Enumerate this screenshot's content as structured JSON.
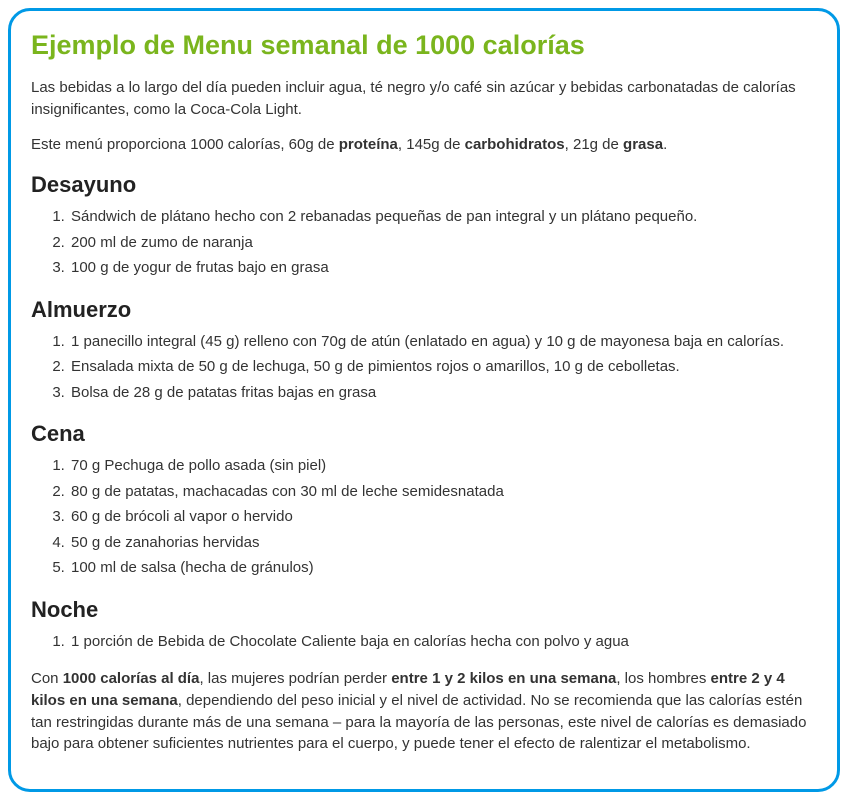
{
  "title": "Ejemplo de Menu semanal de 1000 calorías",
  "intro_p1": "Las bebidas a lo largo del día pueden incluir agua, té negro y/o café sin azúcar y bebidas carbonatadas de calorías insignificantes, como la Coca-Cola Light.",
  "intro_p2_parts": {
    "a": "Este menú proporciona 1000 calorías, 60g de ",
    "b_bold": "proteína",
    "c": ", 145g de ",
    "d_bold": "carbohidratos",
    "e": ", 21g de ",
    "f_bold": "grasa",
    "g": "."
  },
  "sections": [
    {
      "heading": "Desayuno",
      "items": [
        "Sándwich de plátano hecho con 2 rebanadas pequeñas de pan integral y un plátano pequeño.",
        "200 ml de zumo de naranja",
        "100 g de yogur de frutas bajo en grasa"
      ]
    },
    {
      "heading": "Almuerzo",
      "items": [
        "1 panecillo integral (45 g) relleno con 70g de atún (enlatado en agua) y 10 g de mayonesa baja en calorías.",
        "Ensalada mixta de 50 g de lechuga, 50 g de pimientos rojos o amarillos, 10 g de cebolletas.",
        "Bolsa de 28 g de patatas fritas bajas en grasa"
      ]
    },
    {
      "heading": "Cena",
      "items": [
        "70 g Pechuga de pollo asada (sin piel)",
        "80 g de patatas, machacadas con 30 ml de leche semidesnatada",
        "60 g de brócoli al vapor o hervido",
        "50 g de zanahorias hervidas",
        "100 ml de salsa (hecha de gránulos)"
      ]
    },
    {
      "heading": "Noche",
      "items": [
        "1 porción de Bebida de Chocolate Caliente baja en calorías hecha con polvo y agua"
      ]
    }
  ],
  "closing_parts": {
    "a": "Con ",
    "b_bold": "1000 calorías al día",
    "c": ", las mujeres podrían perder ",
    "d_bold": "entre 1 y 2 kilos en una semana",
    "e": ", los hombres ",
    "f_bold": "entre 2 y 4 kilos en una semana",
    "g": ", dependiendo del peso inicial y el nivel de actividad. No se recomienda que las calorías estén tan restringidas durante más de una semana – para la mayoría de las personas, este nivel de calorías es demasiado bajo para obtener suficientes nutrientes para el cuerpo, y puede tener el efecto de ralentizar el metabolismo."
  },
  "colors": {
    "border": "#0099e6",
    "title": "#7ab51d",
    "text": "#333333",
    "background": "#ffffff"
  }
}
